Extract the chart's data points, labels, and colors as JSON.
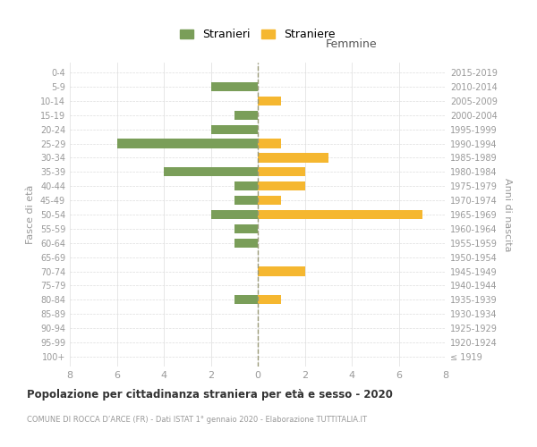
{
  "age_groups": [
    "100+",
    "95-99",
    "90-94",
    "85-89",
    "80-84",
    "75-79",
    "70-74",
    "65-69",
    "60-64",
    "55-59",
    "50-54",
    "45-49",
    "40-44",
    "35-39",
    "30-34",
    "25-29",
    "20-24",
    "15-19",
    "10-14",
    "5-9",
    "0-4"
  ],
  "birth_years": [
    "≤ 1919",
    "1920-1924",
    "1925-1929",
    "1930-1934",
    "1935-1939",
    "1940-1944",
    "1945-1949",
    "1950-1954",
    "1955-1959",
    "1960-1964",
    "1965-1969",
    "1970-1974",
    "1975-1979",
    "1980-1984",
    "1985-1989",
    "1990-1994",
    "1995-1999",
    "2000-2004",
    "2005-2009",
    "2010-2014",
    "2015-2019"
  ],
  "males": [
    0,
    0,
    0,
    0,
    1,
    0,
    0,
    0,
    1,
    1,
    2,
    1,
    1,
    4,
    0,
    6,
    2,
    1,
    0,
    2,
    0
  ],
  "females": [
    0,
    0,
    0,
    0,
    1,
    0,
    2,
    0,
    0,
    0,
    7,
    1,
    2,
    2,
    3,
    1,
    0,
    0,
    1,
    0,
    0
  ],
  "male_color": "#7a9e59",
  "female_color": "#f5b730",
  "dashed_line_color": "#999977",
  "grid_color": "#dddddd",
  "background_color": "#ffffff",
  "text_color": "#999999",
  "title": "Popolazione per cittadinanza straniera per età e sesso - 2020",
  "subtitle": "COMUNE DI ROCCA D’ARCE (FR) - Dati ISTAT 1° gennaio 2020 - Elaborazione TUTTITALIA.IT",
  "xlabel_right": "Femmine",
  "ylabel_left": "Fasce di età",
  "ylabel_right": "Anni di nascita",
  "legend_male": "Stranieri",
  "legend_female": "Straniere",
  "xlim": 8
}
